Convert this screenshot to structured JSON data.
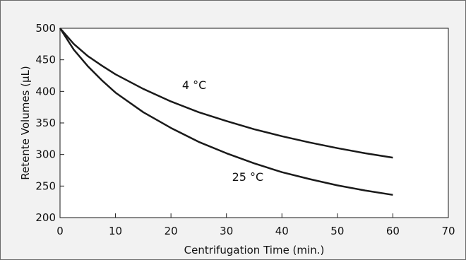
{
  "chart_data": {
    "type": "line",
    "title": "",
    "xlabel": "Centrifugation Time (min.)",
    "ylabel": "Retente Volumes (µL)",
    "xlim": [
      0,
      70
    ],
    "ylim": [
      200,
      500
    ],
    "xticks": [
      0,
      10,
      20,
      30,
      40,
      50,
      60,
      70
    ],
    "yticks": [
      200,
      250,
      300,
      350,
      400,
      450,
      500
    ],
    "grid": false,
    "legend": "none",
    "colors": {
      "line": "#1a1a1a",
      "plot_bg": "#ffffff",
      "frame_bg": "#f2f2f2"
    },
    "series": [
      {
        "name": "4 °C",
        "x": [
          0,
          2.5,
          5,
          7.5,
          10,
          15,
          20,
          25,
          30,
          35,
          40,
          45,
          50,
          55,
          60
        ],
        "y": [
          500,
          475,
          456,
          441,
          427,
          404,
          384,
          367,
          353,
          340,
          329,
          319,
          310,
          302,
          295
        ]
      },
      {
        "name": "25 °C",
        "x": [
          0,
          2.5,
          5,
          7.5,
          10,
          15,
          20,
          25,
          30,
          35,
          40,
          45,
          50,
          55,
          60
        ],
        "y": [
          500,
          466,
          440,
          418,
          398,
          367,
          342,
          320,
          302,
          286,
          272,
          261,
          251,
          243,
          236
        ]
      }
    ],
    "annotations": [
      {
        "text": "4 °C",
        "x": 22,
        "y": 404
      },
      {
        "text": "25 °C",
        "x": 31,
        "y": 258
      }
    ]
  }
}
